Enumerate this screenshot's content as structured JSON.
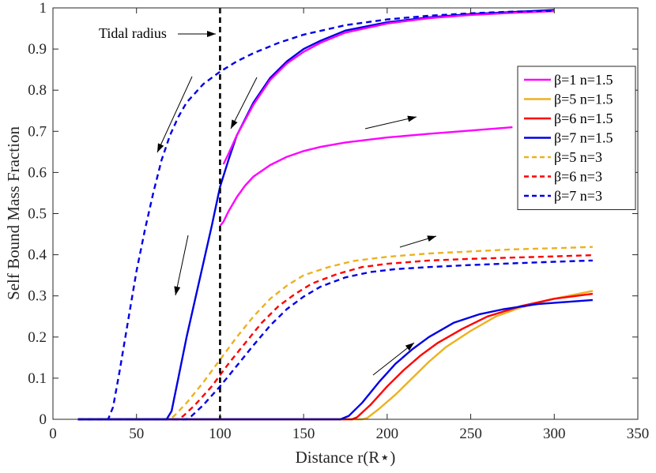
{
  "chart_data": {
    "type": "line",
    "title": "",
    "xlabel": "Distance r(R⋆)",
    "ylabel": "Self Bound Mass Fraction",
    "xlim": [
      0,
      350
    ],
    "ylim": [
      0,
      1
    ],
    "x_ticks": [
      "0",
      "50",
      "100",
      "150",
      "200",
      "250",
      "300",
      "350"
    ],
    "y_ticks": [
      "0",
      "0.1",
      "0.2",
      "0.3",
      "0.4",
      "0.5",
      "0.6",
      "0.7",
      "0.8",
      "0.9",
      "1"
    ],
    "grid": false,
    "legend_position": "right",
    "annotation": {
      "text": "Tidal radius",
      "x_line": 100
    },
    "series": [
      {
        "name": "β=1 n=1.5",
        "color": "#ff00ff",
        "dash": false,
        "points": [
          [
            100,
            0.47
          ],
          [
            102,
            0.48
          ],
          [
            105,
            0.505
          ],
          [
            110,
            0.54
          ],
          [
            115,
            0.568
          ],
          [
            120,
            0.59
          ],
          [
            130,
            0.618
          ],
          [
            140,
            0.638
          ],
          [
            150,
            0.652
          ],
          [
            160,
            0.662
          ],
          [
            175,
            0.673
          ],
          [
            200,
            0.685
          ],
          [
            225,
            0.694
          ],
          [
            250,
            0.702
          ],
          [
            275,
            0.71
          ]
        ]
      },
      {
        "name": "β=5 n=1.5",
        "color": "#edb120",
        "dash": false,
        "points": [
          [
            15,
            0
          ],
          [
            185,
            0
          ],
          [
            188,
            0.003
          ],
          [
            195,
            0.025
          ],
          [
            205,
            0.06
          ],
          [
            215,
            0.1
          ],
          [
            225,
            0.14
          ],
          [
            235,
            0.175
          ],
          [
            250,
            0.215
          ],
          [
            265,
            0.25
          ],
          [
            280,
            0.272
          ],
          [
            300,
            0.293
          ],
          [
            323,
            0.312
          ]
        ]
      },
      {
        "name": "β=6 n=1.5",
        "color": "#ff0000",
        "dash": false,
        "points": [
          [
            15,
            0
          ],
          [
            179,
            0
          ],
          [
            182,
            0.005
          ],
          [
            190,
            0.035
          ],
          [
            200,
            0.08
          ],
          [
            210,
            0.12
          ],
          [
            220,
            0.155
          ],
          [
            230,
            0.185
          ],
          [
            245,
            0.22
          ],
          [
            260,
            0.25
          ],
          [
            280,
            0.275
          ],
          [
            300,
            0.293
          ],
          [
            323,
            0.305
          ]
        ]
      },
      {
        "name": "β=7 n=1.5",
        "color": "#0000e6",
        "dash": false,
        "points": [
          [
            15,
            0
          ],
          [
            172,
            0
          ],
          [
            177,
            0.008
          ],
          [
            185,
            0.04
          ],
          [
            195,
            0.09
          ],
          [
            205,
            0.135
          ],
          [
            215,
            0.17
          ],
          [
            225,
            0.2
          ],
          [
            240,
            0.235
          ],
          [
            255,
            0.255
          ],
          [
            270,
            0.268
          ],
          [
            290,
            0.28
          ],
          [
            323,
            0.29
          ]
        ]
      },
      {
        "name": "β=5 n=3",
        "color": "#edb120",
        "dash": true,
        "points": [
          [
            15,
            0
          ],
          [
            70,
            0
          ],
          [
            73,
            0.01
          ],
          [
            80,
            0.04
          ],
          [
            90,
            0.09
          ],
          [
            100,
            0.145
          ],
          [
            110,
            0.2
          ],
          [
            120,
            0.25
          ],
          [
            130,
            0.293
          ],
          [
            140,
            0.325
          ],
          [
            150,
            0.35
          ],
          [
            165,
            0.37
          ],
          [
            180,
            0.385
          ],
          [
            200,
            0.395
          ],
          [
            225,
            0.403
          ],
          [
            250,
            0.408
          ],
          [
            275,
            0.413
          ],
          [
            300,
            0.416
          ],
          [
            323,
            0.419
          ]
        ]
      },
      {
        "name": "β=6 n=3",
        "color": "#ff0000",
        "dash": true,
        "points": [
          [
            15,
            0
          ],
          [
            75,
            0
          ],
          [
            78,
            0.008
          ],
          [
            85,
            0.035
          ],
          [
            95,
            0.08
          ],
          [
            105,
            0.135
          ],
          [
            115,
            0.185
          ],
          [
            125,
            0.235
          ],
          [
            135,
            0.275
          ],
          [
            145,
            0.305
          ],
          [
            155,
            0.33
          ],
          [
            170,
            0.353
          ],
          [
            185,
            0.37
          ],
          [
            200,
            0.378
          ],
          [
            225,
            0.386
          ],
          [
            250,
            0.39
          ],
          [
            275,
            0.393
          ],
          [
            300,
            0.396
          ],
          [
            323,
            0.399
          ]
        ]
      },
      {
        "name": "β=7 n=3",
        "color": "#0000e6",
        "dash": true,
        "points": [
          [
            15,
            0
          ],
          [
            80,
            0
          ],
          [
            83,
            0.008
          ],
          [
            90,
            0.035
          ],
          [
            100,
            0.08
          ],
          [
            110,
            0.13
          ],
          [
            120,
            0.18
          ],
          [
            130,
            0.228
          ],
          [
            140,
            0.268
          ],
          [
            150,
            0.298
          ],
          [
            160,
            0.322
          ],
          [
            175,
            0.345
          ],
          [
            190,
            0.358
          ],
          [
            205,
            0.365
          ],
          [
            225,
            0.37
          ],
          [
            250,
            0.375
          ],
          [
            275,
            0.379
          ],
          [
            300,
            0.383
          ],
          [
            323,
            0.386
          ]
        ]
      },
      {
        "name": "β=7 n=1.5 (inner)",
        "color": "#0000e6",
        "dash": false,
        "legend": false,
        "points": [
          [
            15,
            0
          ],
          [
            68,
            0
          ],
          [
            71,
            0.02
          ],
          [
            75,
            0.1
          ],
          [
            80,
            0.2
          ],
          [
            85,
            0.29
          ],
          [
            90,
            0.38
          ],
          [
            95,
            0.47
          ],
          [
            100,
            0.565
          ],
          [
            105,
            0.63
          ],
          [
            110,
            0.69
          ],
          [
            120,
            0.77
          ],
          [
            130,
            0.83
          ],
          [
            140,
            0.87
          ],
          [
            150,
            0.9
          ],
          [
            160,
            0.92
          ],
          [
            175,
            0.945
          ],
          [
            200,
            0.965
          ],
          [
            225,
            0.977
          ],
          [
            250,
            0.985
          ],
          [
            275,
            0.99
          ],
          [
            300,
            0.995
          ]
        ]
      },
      {
        "name": "β=1 n=1.5 (upper)",
        "color": "#ff00ff",
        "dash": false,
        "legend": false,
        "points": [
          [
            102,
            0.62
          ],
          [
            105,
            0.645
          ],
          [
            110,
            0.69
          ],
          [
            120,
            0.765
          ],
          [
            130,
            0.825
          ],
          [
            140,
            0.865
          ],
          [
            150,
            0.893
          ],
          [
            160,
            0.915
          ],
          [
            175,
            0.94
          ],
          [
            200,
            0.962
          ],
          [
            225,
            0.975
          ],
          [
            250,
            0.983
          ],
          [
            275,
            0.988
          ],
          [
            300,
            0.992
          ]
        ]
      },
      {
        "name": "β=7 n=3 (inner)",
        "color": "#0000e6",
        "dash": true,
        "legend": false,
        "points": [
          [
            15,
            0
          ],
          [
            33,
            0
          ],
          [
            36,
            0.03
          ],
          [
            40,
            0.12
          ],
          [
            45,
            0.24
          ],
          [
            50,
            0.36
          ],
          [
            55,
            0.46
          ],
          [
            60,
            0.55
          ],
          [
            65,
            0.63
          ],
          [
            70,
            0.69
          ],
          [
            75,
            0.735
          ],
          [
            80,
            0.77
          ],
          [
            90,
            0.815
          ],
          [
            100,
            0.845
          ],
          [
            110,
            0.87
          ],
          [
            120,
            0.89
          ],
          [
            135,
            0.915
          ],
          [
            150,
            0.935
          ],
          [
            175,
            0.958
          ],
          [
            200,
            0.972
          ],
          [
            225,
            0.981
          ],
          [
            250,
            0.987
          ],
          [
            275,
            0.991
          ],
          [
            300,
            0.993
          ]
        ]
      }
    ]
  }
}
